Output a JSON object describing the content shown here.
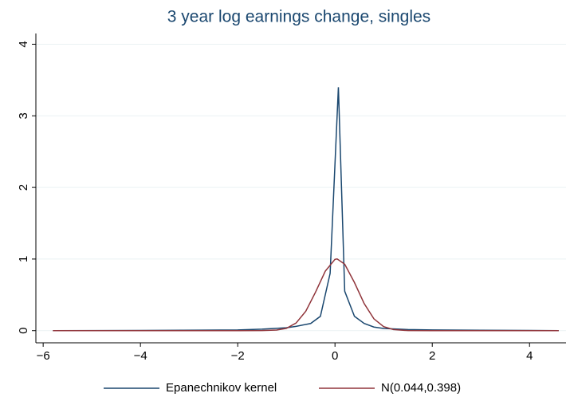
{
  "chart_data": {
    "type": "line",
    "title": "3 year log earnings change, singles",
    "xlim": [
      -6.15,
      4.75
    ],
    "xticks": [
      -6,
      -4,
      -2,
      0,
      2,
      4
    ],
    "ylim": [
      -0.17,
      4.15
    ],
    "yticks": [
      0,
      1,
      2,
      3,
      4
    ],
    "grid": true,
    "legend": "bottom",
    "series": [
      {
        "name": "Epanechnikov kernel",
        "color": "#1a476f",
        "x": [
          -5.8,
          -4,
          -2,
          -1.5,
          -1,
          -0.8,
          -0.5,
          -0.3,
          -0.1,
          0.07,
          0.2,
          0.4,
          0.6,
          0.8,
          1,
          1.5,
          2,
          3,
          4,
          4.6
        ],
        "values": [
          0,
          0.002,
          0.01,
          0.02,
          0.04,
          0.06,
          0.1,
          0.2,
          0.8,
          3.4,
          0.55,
          0.2,
          0.1,
          0.05,
          0.03,
          0.015,
          0.01,
          0.005,
          0.002,
          0
        ]
      },
      {
        "name": "N(0.044,0.398)",
        "color": "#90353b",
        "x": [
          -5.8,
          -2,
          -1.5,
          -1.2,
          -1,
          -0.8,
          -0.6,
          -0.4,
          -0.2,
          0,
          0.044,
          0.2,
          0.4,
          0.6,
          0.8,
          1,
          1.2,
          1.5,
          2,
          4.6
        ],
        "values": [
          0,
          0,
          0.0012,
          0.0076,
          0.032,
          0.106,
          0.271,
          0.538,
          0.83,
          0.996,
          1.002,
          0.928,
          0.672,
          0.378,
          0.165,
          0.056,
          0.0148,
          0.0012,
          0,
          0
        ]
      }
    ]
  }
}
